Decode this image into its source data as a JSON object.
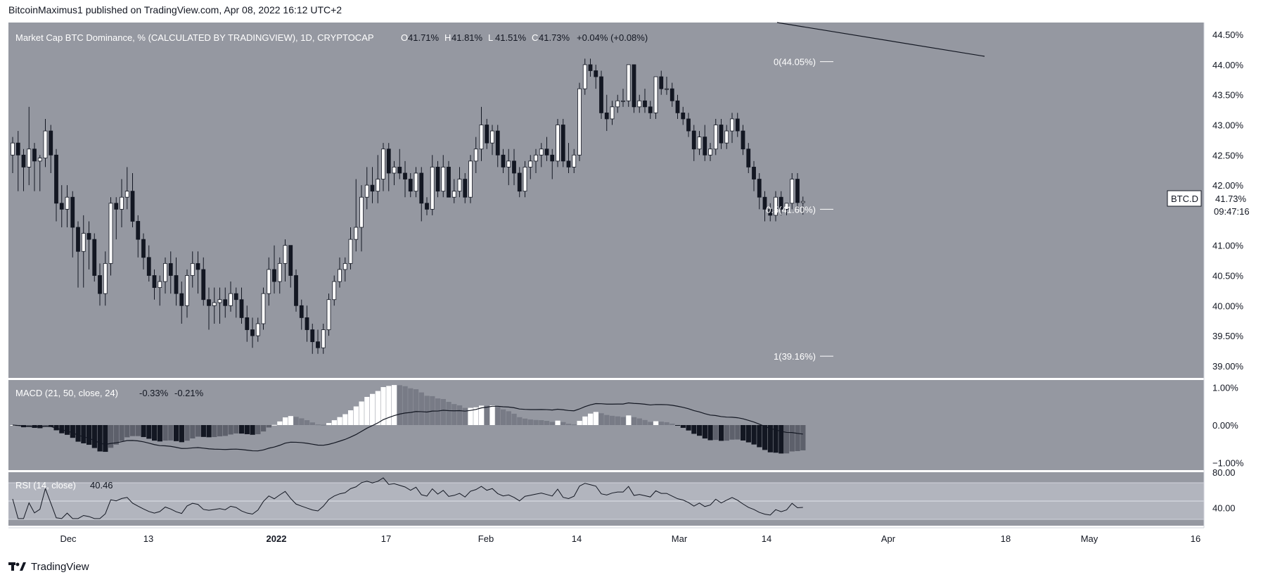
{
  "header": {
    "published_line": "BitcoinMaximus1 published on TradingView.com, Apr 08, 2022 16:12 UTC+2"
  },
  "footer": {
    "brand": "TradingView"
  },
  "colors": {
    "pane_bg": "#9598a1",
    "candle_up": "#ffffff",
    "candle_down": "#131722",
    "rsi_band": "#b2b5be",
    "macd_hist_neg_strong": "#131722",
    "macd_hist_neg_weak": "#5d606b",
    "macd_hist_pos_strong": "#ffffff",
    "macd_hist_pos_weak": "#787b86"
  },
  "main_pane": {
    "legend_title": "Market Cap BTC Dominance, % (CALCULATED BY TRADINGVIEW), 1D, CRYPTOCAP",
    "ohlc": [
      {
        "k": "O",
        "v": "41.71%"
      },
      {
        "k": "H",
        "v": "41.81%"
      },
      {
        "k": "L",
        "v": "41.51%"
      },
      {
        "k": "C",
        "v": "41.73%"
      }
    ],
    "change": "+0.04% (+0.08%)",
    "price_badge": {
      "symbol": "BTC.D",
      "price": "41.73%",
      "countdown": "09:47:16"
    },
    "fib_levels": [
      {
        "label": "0(44.05%)",
        "value": 44.05
      },
      {
        "label": "0.5(41.60%)",
        "value": 41.6
      },
      {
        "label": "1(39.16%)",
        "value": 39.16
      }
    ],
    "y_ticks": [
      "44.50%",
      "44.00%",
      "43.50%",
      "43.00%",
      "42.50%",
      "42.00%",
      "41.50%",
      "41.00%",
      "40.50%",
      "40.00%",
      "39.50%",
      "39.00%"
    ]
  },
  "macd_pane": {
    "legend": "MACD (21, 50, close, 24)",
    "values": [
      "-0.33%",
      "-0.21%"
    ],
    "y_ticks": [
      "1.00%",
      "0.00%",
      "−1.00%"
    ]
  },
  "rsi_pane": {
    "legend": "RSI (14, close)",
    "value": "40.46",
    "y_ticks": [
      "80.00",
      "40.00"
    ]
  },
  "x_ticks": [
    {
      "label": "Dec",
      "bold": false
    },
    {
      "label": "13",
      "bold": false
    },
    {
      "label": "2022",
      "bold": true
    },
    {
      "label": "17",
      "bold": false
    },
    {
      "label": "Feb",
      "bold": false
    },
    {
      "label": "14",
      "bold": false
    },
    {
      "label": "Mar",
      "bold": false
    },
    {
      "label": "14",
      "bold": false
    },
    {
      "label": "Apr",
      "bold": false
    },
    {
      "label": "18",
      "bold": false
    },
    {
      "label": "May",
      "bold": false
    },
    {
      "label": "16",
      "bold": false
    }
  ],
  "chart_data": {
    "type": "candlestick",
    "symbol": "BTC.D",
    "interval": "1D",
    "ylim": [
      38.8,
      44.7
    ],
    "candles": [
      [
        42.5,
        42.8,
        42.2,
        42.7
      ],
      [
        42.7,
        42.9,
        41.9,
        42.5
      ],
      [
        42.5,
        42.6,
        41.9,
        42.3
      ],
      [
        42.3,
        43.3,
        42.0,
        42.6
      ],
      [
        42.6,
        42.7,
        41.9,
        42.4
      ],
      [
        42.4,
        42.5,
        41.9,
        42.45
      ],
      [
        42.45,
        43.1,
        42.3,
        42.9
      ],
      [
        42.9,
        43.0,
        42.2,
        42.5
      ],
      [
        42.5,
        42.6,
        41.4,
        41.7
      ],
      [
        41.7,
        42.0,
        41.3,
        41.6
      ],
      [
        41.6,
        42.0,
        41.3,
        41.8
      ],
      [
        41.8,
        41.9,
        40.8,
        41.3
      ],
      [
        41.3,
        41.4,
        40.3,
        40.9
      ],
      [
        40.9,
        41.5,
        40.3,
        41.2
      ],
      [
        41.2,
        41.4,
        40.6,
        41.1
      ],
      [
        41.1,
        41.2,
        40.4,
        40.5
      ],
      [
        40.5,
        40.7,
        40.0,
        40.2
      ],
      [
        40.2,
        40.9,
        40.0,
        40.7
      ],
      [
        40.7,
        41.8,
        40.5,
        41.7
      ],
      [
        41.7,
        41.8,
        41.1,
        41.6
      ],
      [
        41.6,
        42.1,
        41.3,
        41.8
      ],
      [
        41.8,
        42.3,
        41.6,
        41.9
      ],
      [
        41.9,
        42.2,
        41.3,
        41.4
      ],
      [
        41.4,
        41.5,
        40.8,
        41.1
      ],
      [
        41.1,
        41.2,
        40.6,
        40.8
      ],
      [
        40.8,
        41.0,
        40.4,
        40.5
      ],
      [
        40.5,
        40.6,
        40.1,
        40.3
      ],
      [
        40.3,
        40.5,
        40.0,
        40.4
      ],
      [
        40.4,
        40.8,
        40.2,
        40.7
      ],
      [
        40.7,
        40.9,
        40.2,
        40.5
      ],
      [
        40.5,
        40.8,
        40.0,
        40.2
      ],
      [
        40.2,
        40.4,
        39.7,
        40.0
      ],
      [
        40.0,
        40.6,
        39.8,
        40.5
      ],
      [
        40.5,
        40.9,
        40.3,
        40.7
      ],
      [
        40.7,
        40.9,
        40.2,
        40.6
      ],
      [
        40.6,
        40.8,
        40.0,
        40.1
      ],
      [
        40.1,
        40.3,
        39.6,
        40.0
      ],
      [
        40.0,
        40.3,
        39.7,
        40.05
      ],
      [
        40.05,
        40.3,
        39.7,
        40.1
      ],
      [
        40.1,
        40.3,
        39.8,
        40.0
      ],
      [
        40.0,
        40.4,
        39.9,
        40.2
      ],
      [
        40.2,
        40.3,
        39.8,
        40.1
      ],
      [
        40.1,
        40.3,
        39.7,
        39.8
      ],
      [
        39.8,
        40.0,
        39.4,
        39.6
      ],
      [
        39.6,
        39.8,
        39.3,
        39.5
      ],
      [
        39.5,
        39.8,
        39.4,
        39.7
      ],
      [
        39.7,
        40.3,
        39.6,
        40.2
      ],
      [
        40.2,
        40.8,
        40.0,
        40.6
      ],
      [
        40.6,
        41.0,
        40.2,
        40.4
      ],
      [
        40.4,
        40.8,
        40.2,
        40.7
      ],
      [
        40.7,
        41.1,
        40.4,
        41.0
      ],
      [
        41.0,
        41.0,
        40.3,
        40.5
      ],
      [
        40.5,
        40.6,
        39.9,
        40.0
      ],
      [
        40.0,
        40.1,
        39.6,
        39.8
      ],
      [
        39.8,
        40.0,
        39.4,
        39.6
      ],
      [
        39.6,
        39.7,
        39.2,
        39.4
      ],
      [
        39.4,
        39.6,
        39.2,
        39.3
      ],
      [
        39.3,
        39.7,
        39.2,
        39.6
      ],
      [
        39.6,
        40.2,
        39.5,
        40.1
      ],
      [
        40.1,
        40.5,
        40.0,
        40.4
      ],
      [
        40.4,
        40.8,
        40.3,
        40.6
      ],
      [
        40.6,
        40.8,
        40.4,
        40.7
      ],
      [
        40.7,
        41.3,
        40.6,
        41.1
      ],
      [
        41.1,
        42.1,
        40.9,
        41.3
      ],
      [
        41.3,
        42.0,
        40.9,
        41.8
      ],
      [
        41.8,
        42.3,
        41.6,
        42.0
      ],
      [
        42.0,
        42.3,
        41.7,
        41.9
      ],
      [
        41.9,
        42.5,
        41.7,
        42.1
      ],
      [
        42.1,
        42.7,
        41.9,
        42.6
      ],
      [
        42.6,
        42.7,
        41.9,
        42.2
      ],
      [
        42.2,
        42.4,
        42.0,
        42.3
      ],
      [
        42.3,
        42.6,
        42.1,
        42.2
      ],
      [
        42.2,
        42.4,
        41.8,
        42.1
      ],
      [
        42.1,
        42.2,
        41.8,
        41.9
      ],
      [
        41.9,
        42.3,
        41.8,
        42.2
      ],
      [
        42.2,
        42.3,
        41.4,
        41.7
      ],
      [
        41.7,
        41.8,
        41.5,
        41.6
      ],
      [
        41.6,
        42.5,
        41.5,
        42.3
      ],
      [
        42.3,
        42.4,
        41.8,
        41.9
      ],
      [
        41.9,
        42.5,
        41.8,
        42.3
      ],
      [
        42.3,
        42.4,
        41.8,
        41.8
      ],
      [
        41.8,
        42.1,
        41.7,
        41.9
      ],
      [
        41.9,
        42.3,
        41.8,
        42.1
      ],
      [
        42.1,
        42.2,
        41.7,
        41.8
      ],
      [
        41.8,
        42.5,
        41.7,
        42.4
      ],
      [
        42.4,
        42.8,
        42.2,
        42.6
      ],
      [
        42.6,
        43.3,
        42.4,
        43.0
      ],
      [
        43.0,
        43.1,
        42.6,
        42.7
      ],
      [
        42.7,
        43.0,
        42.5,
        42.9
      ],
      [
        42.9,
        43.0,
        42.3,
        42.5
      ],
      [
        42.5,
        42.6,
        42.2,
        42.3
      ],
      [
        42.3,
        42.6,
        42.0,
        42.4
      ],
      [
        42.4,
        42.6,
        42.0,
        42.2
      ],
      [
        42.2,
        42.3,
        41.8,
        41.9
      ],
      [
        41.9,
        42.4,
        41.8,
        42.3
      ],
      [
        42.3,
        42.5,
        42.1,
        42.4
      ],
      [
        42.4,
        42.6,
        42.2,
        42.5
      ],
      [
        42.5,
        42.7,
        42.3,
        42.6
      ],
      [
        42.6,
        42.8,
        42.4,
        42.5
      ],
      [
        42.5,
        42.6,
        42.1,
        42.4
      ],
      [
        42.4,
        43.1,
        42.3,
        43.0
      ],
      [
        43.0,
        43.1,
        42.3,
        42.4
      ],
      [
        42.4,
        42.7,
        42.2,
        42.3
      ],
      [
        42.3,
        42.6,
        42.2,
        42.5
      ],
      [
        42.5,
        43.7,
        42.4,
        43.6
      ],
      [
        43.6,
        44.1,
        43.5,
        44.0
      ],
      [
        44.0,
        44.1,
        43.8,
        43.9
      ],
      [
        43.9,
        44.0,
        43.6,
        43.8
      ],
      [
        43.8,
        43.9,
        43.1,
        43.2
      ],
      [
        43.2,
        43.5,
        42.9,
        43.1
      ],
      [
        43.1,
        43.4,
        43.0,
        43.3
      ],
      [
        43.3,
        43.5,
        43.2,
        43.4
      ],
      [
        43.4,
        43.6,
        43.3,
        43.4
      ],
      [
        43.4,
        44.0,
        43.3,
        44.0
      ],
      [
        44.0,
        44.0,
        43.2,
        43.3
      ],
      [
        43.3,
        43.5,
        43.2,
        43.4
      ],
      [
        43.4,
        43.6,
        43.2,
        43.3
      ],
      [
        43.3,
        43.4,
        43.1,
        43.2
      ],
      [
        43.2,
        43.8,
        43.1,
        43.8
      ],
      [
        43.8,
        43.9,
        43.5,
        43.6
      ],
      [
        43.6,
        43.8,
        43.5,
        43.6
      ],
      [
        43.6,
        43.7,
        43.3,
        43.4
      ],
      [
        43.4,
        43.5,
        43.1,
        43.2
      ],
      [
        43.2,
        43.3,
        43.0,
        43.1
      ],
      [
        43.1,
        43.2,
        42.8,
        42.9
      ],
      [
        42.9,
        43.0,
        42.4,
        42.6
      ],
      [
        42.6,
        42.9,
        42.5,
        42.8
      ],
      [
        42.8,
        43.0,
        42.4,
        42.5
      ],
      [
        42.5,
        42.7,
        42.4,
        42.6
      ],
      [
        42.6,
        43.1,
        42.5,
        43.0
      ],
      [
        43.0,
        43.1,
        42.6,
        42.7
      ],
      [
        42.7,
        43.0,
        42.6,
        42.9
      ],
      [
        42.9,
        43.2,
        42.7,
        43.1
      ],
      [
        43.1,
        43.2,
        42.8,
        42.9
      ],
      [
        42.9,
        43.0,
        42.5,
        42.6
      ],
      [
        42.6,
        42.7,
        42.2,
        42.3
      ],
      [
        42.3,
        42.4,
        41.9,
        42.1
      ],
      [
        42.1,
        42.2,
        41.6,
        41.8
      ],
      [
        41.8,
        41.9,
        41.4,
        41.6
      ],
      [
        41.6,
        41.7,
        41.4,
        41.5
      ],
      [
        41.5,
        41.9,
        41.4,
        41.8
      ],
      [
        41.8,
        41.9,
        41.5,
        41.6
      ],
      [
        41.6,
        41.7,
        41.5,
        41.7
      ],
      [
        41.7,
        42.2,
        41.6,
        42.1
      ],
      [
        42.1,
        42.2,
        41.6,
        41.71
      ],
      [
        41.71,
        41.81,
        41.51,
        41.73
      ]
    ],
    "macd": {
      "params": [
        21,
        50,
        24
      ],
      "values": [
        "-0.33%",
        "-0.21%"
      ],
      "ylim": [
        -1.2,
        1.2
      ]
    },
    "rsi": {
      "period": 14,
      "value": 40.46,
      "band": [
        30,
        70
      ],
      "ylim": [
        20,
        80
      ]
    }
  }
}
